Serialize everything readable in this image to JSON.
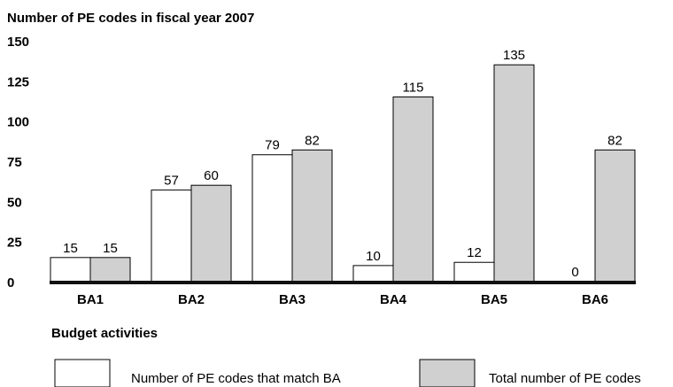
{
  "chart_data": {
    "type": "bar",
    "title": "",
    "ylabel": "Number of PE codes in fiscal year 2007",
    "xlabel": "Budget activities",
    "ylim": [
      0,
      150
    ],
    "yticks": [
      "150",
      "125",
      "100",
      "75",
      "50",
      "25",
      "0"
    ],
    "categories": [
      "BA1",
      "BA2",
      "BA3",
      "BA4",
      "BA5",
      "BA6"
    ],
    "series": [
      {
        "name": "Number of PE codes that match BA",
        "values": [
          15,
          57,
          79,
          10,
          12,
          0
        ],
        "color": "#ffffff"
      },
      {
        "name": "Total number of PE codes",
        "values": [
          15,
          60,
          82,
          115,
          135,
          82
        ],
        "color": "#d0d0d0"
      }
    ],
    "legend_position": "bottom",
    "grid": false
  }
}
